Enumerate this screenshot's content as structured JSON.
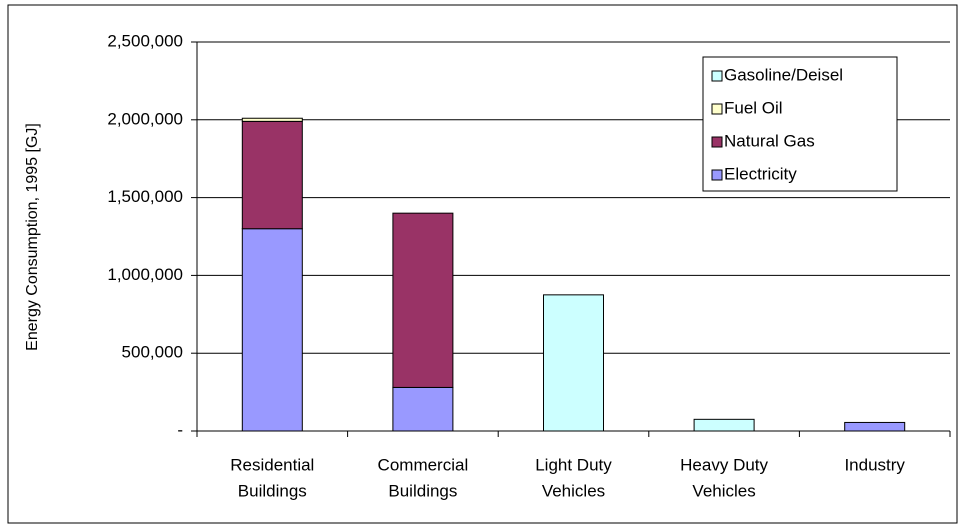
{
  "chart_data": {
    "type": "stacked-bar",
    "y_label": "Energy Consumption, 1995 [GJ]",
    "categories": [
      [
        "Residential",
        "Buildings"
      ],
      [
        "Commercial",
        "Buildings"
      ],
      [
        "Light Duty",
        "Vehicles"
      ],
      [
        "Heavy Duty",
        "Vehicles"
      ],
      [
        "Industry"
      ]
    ],
    "series": [
      {
        "name": "Electricity",
        "color": "#9999ff",
        "values": [
          1300000,
          280000,
          0,
          0,
          55000
        ]
      },
      {
        "name": "Natural Gas",
        "color": "#993366",
        "values": [
          690000,
          1120000,
          0,
          0,
          0
        ]
      },
      {
        "name": "Fuel Oil",
        "color": "#ffffcc",
        "values": [
          20000,
          0,
          0,
          0,
          0
        ]
      },
      {
        "name": "Gasoline/Deisel",
        "color": "#ccffff",
        "values": [
          0,
          0,
          875000,
          75000,
          0
        ]
      }
    ],
    "ylim": [
      0,
      2500000
    ],
    "yticks": [
      {
        "value": 0,
        "label": "-"
      },
      {
        "value": 500000,
        "label": "500,000"
      },
      {
        "value": 1000000,
        "label": "1,000,000"
      },
      {
        "value": 1500000,
        "label": "1,500,000"
      },
      {
        "value": 2000000,
        "label": "2,000,000"
      },
      {
        "value": 2500000,
        "label": "2,500,000"
      }
    ],
    "grid": true,
    "legend": "upper right"
  }
}
